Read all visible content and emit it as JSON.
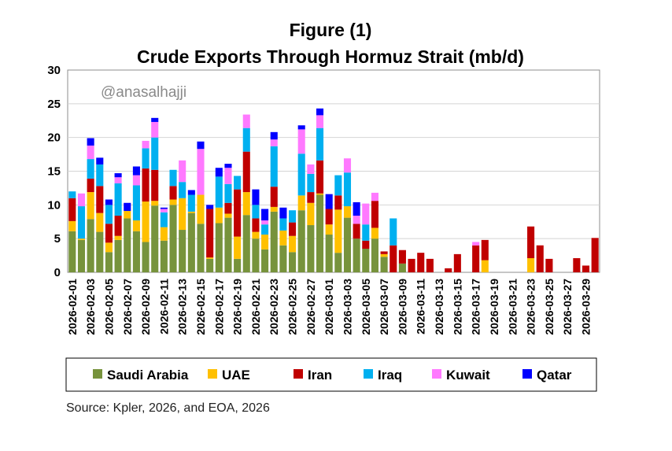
{
  "chart_data": {
    "type": "bar",
    "stacked": true,
    "title": "Figure (1)",
    "subtitle": "Crude Exports Through Hormuz Strait (mb/d)",
    "watermark": "@anasalhajji",
    "source": "Source: Kpler, 2026, and EOA, 2026",
    "ylim": [
      0,
      30
    ],
    "yticks": [
      0,
      5,
      10,
      15,
      20,
      25,
      30
    ],
    "grid": true,
    "legend_position": "bottom",
    "x_tick_labels": [
      "2026-02-01",
      "2026-02-03",
      "2026-02-05",
      "2026-02-07",
      "2026-02-09",
      "2026-02-11",
      "2026-02-13",
      "2026-02-15",
      "2026-02-17",
      "2026-02-19",
      "2026-02-21",
      "2026-02-23",
      "2026-02-25",
      "2026-02-27",
      "2026-03-01",
      "2026-03-03",
      "2026-03-05",
      "2026-03-07",
      "2026-03-09",
      "2026-03-11",
      "2026-03-13",
      "2026-03-15",
      "2026-03-17",
      "2026-03-19",
      "2026-03-21",
      "2026-03-23",
      "2026-03-25",
      "2026-03-27",
      "2026-03-29"
    ],
    "categories": [
      "2026-02-01",
      "2026-02-02",
      "2026-02-03",
      "2026-02-04",
      "2026-02-05",
      "2026-02-06",
      "2026-02-07",
      "2026-02-08",
      "2026-02-09",
      "2026-02-10",
      "2026-02-11",
      "2026-02-12",
      "2026-02-13",
      "2026-02-14",
      "2026-02-15",
      "2026-02-16",
      "2026-02-17",
      "2026-02-18",
      "2026-02-19",
      "2026-02-20",
      "2026-02-21",
      "2026-02-22",
      "2026-02-23",
      "2026-02-24",
      "2026-02-25",
      "2026-02-26",
      "2026-02-27",
      "2026-02-28",
      "2026-03-01",
      "2026-03-02",
      "2026-03-03",
      "2026-03-04",
      "2026-03-05",
      "2026-03-06",
      "2026-03-07",
      "2026-03-08",
      "2026-03-09",
      "2026-03-10",
      "2026-03-11",
      "2026-03-12",
      "2026-03-13",
      "2026-03-14",
      "2026-03-15",
      "2026-03-16",
      "2026-03-17",
      "2026-03-18",
      "2026-03-19",
      "2026-03-20",
      "2026-03-21",
      "2026-03-22",
      "2026-03-23",
      "2026-03-24",
      "2026-03-25",
      "2026-03-26",
      "2026-03-27",
      "2026-03-28",
      "2026-03-29",
      "2026-03-30"
    ],
    "series": [
      {
        "name": "Saudi Arabia",
        "color": "#77933c",
        "values": [
          6.1,
          4.8,
          7.9,
          6.0,
          3.0,
          4.8,
          8.0,
          6.1,
          4.5,
          9.9,
          4.7,
          10.0,
          6.3,
          8.8,
          7.2,
          2.0,
          7.3,
          8.1,
          2.0,
          8.5,
          5.0,
          3.4,
          9.0,
          4.0,
          3.0,
          9.2,
          7.0,
          11.5,
          5.6,
          2.9,
          8.1,
          5.0,
          3.5,
          5.0,
          2.3,
          0,
          1.3,
          0,
          0,
          0,
          0,
          0,
          0,
          0,
          0,
          0,
          0,
          0,
          0,
          0,
          0,
          0,
          0,
          0,
          0,
          0,
          0,
          0
        ]
      },
      {
        "name": "UAE",
        "color": "#ffc000",
        "values": [
          1.5,
          0.2,
          4.0,
          2.8,
          1.4,
          0.6,
          1.1,
          1.6,
          6.0,
          0.7,
          2.0,
          0.8,
          4.7,
          0.2,
          4.3,
          0.2,
          2.3,
          0.6,
          3.3,
          3.4,
          1.0,
          2.2,
          0.7,
          2.2,
          2.4,
          2.2,
          3.3,
          0.2,
          1.5,
          6.4,
          1.7,
          0,
          0,
          1.6,
          0.4,
          0,
          0,
          0,
          0,
          0,
          0,
          0,
          0,
          0,
          0,
          1.8,
          0,
          0,
          0,
          0,
          2.1,
          0,
          0,
          0,
          0,
          0,
          0,
          0
        ]
      },
      {
        "name": "Iran",
        "color": "#c00000",
        "values": [
          3.4,
          0,
          2.0,
          4.0,
          2.8,
          3.0,
          0,
          0,
          4.9,
          4.6,
          0,
          2.0,
          0,
          0,
          0,
          7.2,
          0,
          1.6,
          7.0,
          6.0,
          2.0,
          0,
          3.0,
          0,
          2.0,
          0,
          1.6,
          4.9,
          2.3,
          2.1,
          0,
          2.2,
          1.2,
          4.0,
          0.4,
          4.0,
          2.0,
          2.0,
          2.9,
          2.0,
          0,
          0.6,
          2.7,
          0,
          4.0,
          3.0,
          0,
          0,
          0,
          0,
          4.7,
          4.0,
          2.0,
          0,
          0,
          2.1,
          1.0,
          5.1
        ]
      },
      {
        "name": "Iraq",
        "color": "#00b0f0",
        "values": [
          1.0,
          4.8,
          2.9,
          3.2,
          2.8,
          4.8,
          0,
          5.2,
          3.0,
          4.8,
          2.2,
          2.4,
          2.4,
          2.5,
          0,
          0,
          4.6,
          2.8,
          2.0,
          3.5,
          2.0,
          1.5,
          6.0,
          1.8,
          1.8,
          6.2,
          2.7,
          4.8,
          0,
          3.0,
          5.0,
          0,
          2.4,
          0,
          0,
          4.0,
          0,
          0,
          0,
          0,
          0,
          0,
          0,
          0,
          0,
          0,
          0,
          0,
          0,
          0,
          0,
          0,
          0,
          0,
          0,
          0,
          0,
          0
        ]
      },
      {
        "name": "Kuwait",
        "color": "#ff79ff",
        "values": [
          0,
          1.9,
          2.0,
          0,
          0,
          0.9,
          0,
          1.5,
          1.1,
          2.3,
          0.5,
          0,
          3.2,
          0,
          6.8,
          0,
          0,
          2.4,
          0,
          2.0,
          0,
          0.6,
          1.0,
          0,
          0,
          3.6,
          1.4,
          1.9,
          0,
          0,
          2.1,
          1.2,
          3.1,
          1.2,
          0,
          0,
          0,
          0,
          0,
          0,
          0,
          0,
          0,
          0,
          0.5,
          0,
          0,
          0,
          0,
          0,
          0,
          0,
          0,
          0,
          0,
          0,
          0,
          0
        ]
      },
      {
        "name": "Qatar",
        "color": "#0000ff",
        "values": [
          0,
          0,
          1.1,
          1.0,
          0.8,
          0.6,
          1.2,
          1.3,
          0,
          0.6,
          0.2,
          0,
          0,
          0.7,
          1.1,
          0.6,
          1.3,
          0.6,
          0,
          0,
          2.3,
          1.7,
          1.1,
          1.6,
          0,
          0.6,
          0,
          1.0,
          2.2,
          0,
          0,
          2.0,
          0,
          0,
          0,
          0,
          0,
          0,
          0,
          0,
          0,
          0,
          0,
          0,
          0,
          0,
          0,
          0,
          0,
          0,
          0,
          0,
          0,
          0,
          0,
          0,
          0,
          0
        ]
      }
    ]
  }
}
